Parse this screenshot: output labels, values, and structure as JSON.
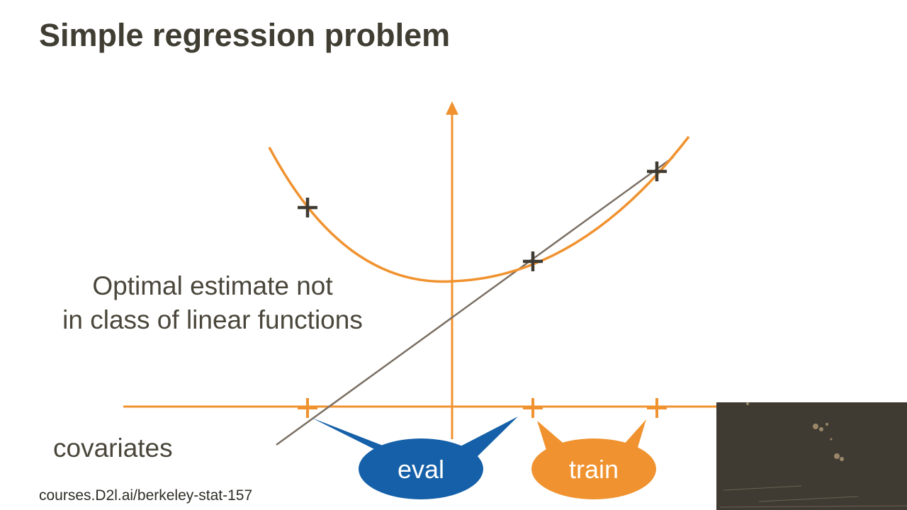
{
  "slide": {
    "title": "Simple regression problem",
    "annotation_line1": "Optimal estimate not",
    "annotation_line2": "in class of linear functions",
    "axis_label": "covariates",
    "footer_link": "courses.D2l.ai/berkeley-stat-157"
  },
  "bubbles": {
    "eval_label": "eval",
    "train_label": "train"
  },
  "colors": {
    "accent_orange": "#f0922f",
    "eval_blue": "#1560a8",
    "title_text": "#403d33",
    "linear_fit": "#7a6f63",
    "marker_dark": "#3f3b33",
    "video_bg": "#3f3b33"
  },
  "icons": {
    "marker": "plus-icon"
  }
}
